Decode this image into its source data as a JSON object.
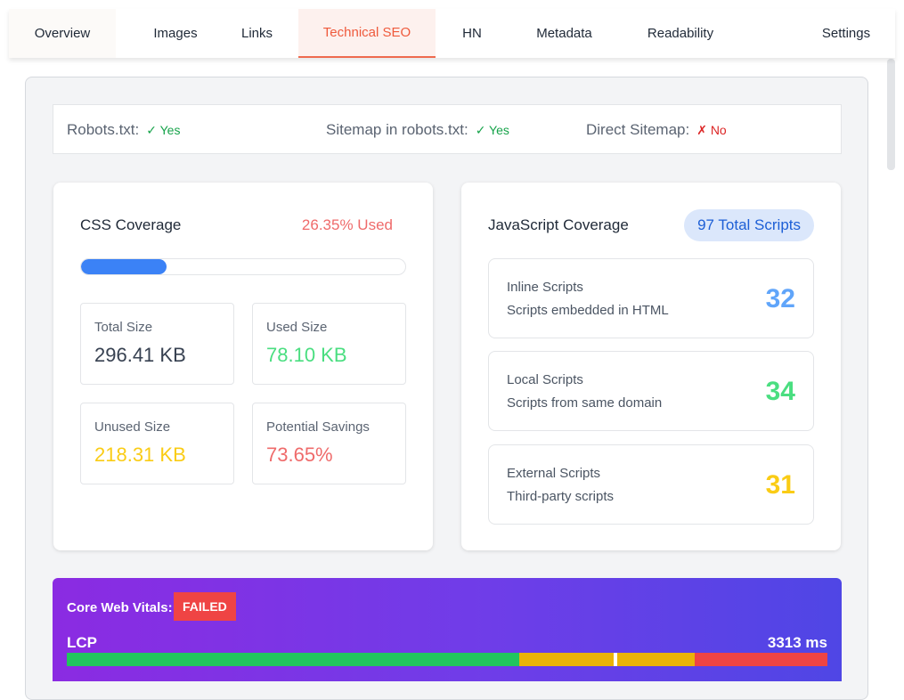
{
  "tabs": [
    {
      "label": "Overview"
    },
    {
      "label": "Images"
    },
    {
      "label": "Links"
    },
    {
      "label": "Technical SEO"
    },
    {
      "label": "HN"
    },
    {
      "label": "Metadata"
    },
    {
      "label": "Readability"
    },
    {
      "label": "Settings"
    }
  ],
  "active_tab": "Technical SEO",
  "robots": {
    "robots_label": "Robots.txt:",
    "robots_value": "✓ Yes",
    "sitemap_label": "Sitemap in robots.txt:",
    "sitemap_value": "✓ Yes",
    "direct_label": "Direct Sitemap:",
    "direct_value": "✗ No"
  },
  "css_coverage": {
    "title": "CSS Coverage",
    "used_label": "26.35% Used",
    "used_fraction": 0.2635,
    "stats": [
      {
        "label": "Total Size",
        "value": "296.41 KB",
        "color": "#374151"
      },
      {
        "label": "Used Size",
        "value": "78.10 KB",
        "color": "#4ade80"
      },
      {
        "label": "Unused Size",
        "value": "218.31 KB",
        "color": "#facc15"
      },
      {
        "label": "Potential Savings",
        "value": "73.65%",
        "color": "#ef6b6b"
      }
    ]
  },
  "js_coverage": {
    "title": "JavaScript Coverage",
    "total_badge": "97 Total Scripts",
    "scripts": [
      {
        "name": "Inline Scripts",
        "desc": "Scripts embedded in HTML",
        "count": "32",
        "color": "#60a5fa"
      },
      {
        "name": "Local Scripts",
        "desc": "Scripts from same domain",
        "count": "34",
        "color": "#4ade80"
      },
      {
        "name": "External Scripts",
        "desc": "Third-party scripts",
        "count": "31",
        "color": "#facc15"
      }
    ]
  },
  "core_web_vitals": {
    "label": "Core Web Vitals:",
    "status": "FAILED",
    "status_color": "#ef4444",
    "metric": "LCP",
    "metric_value": "3313 ms",
    "marker_fraction": 0.721,
    "segments": [
      {
        "fraction": 0.595,
        "color": "#22c55e"
      },
      {
        "fraction": 0.23,
        "color": "#eab308"
      },
      {
        "fraction": 0.175,
        "color": "#ef4444"
      }
    ]
  }
}
